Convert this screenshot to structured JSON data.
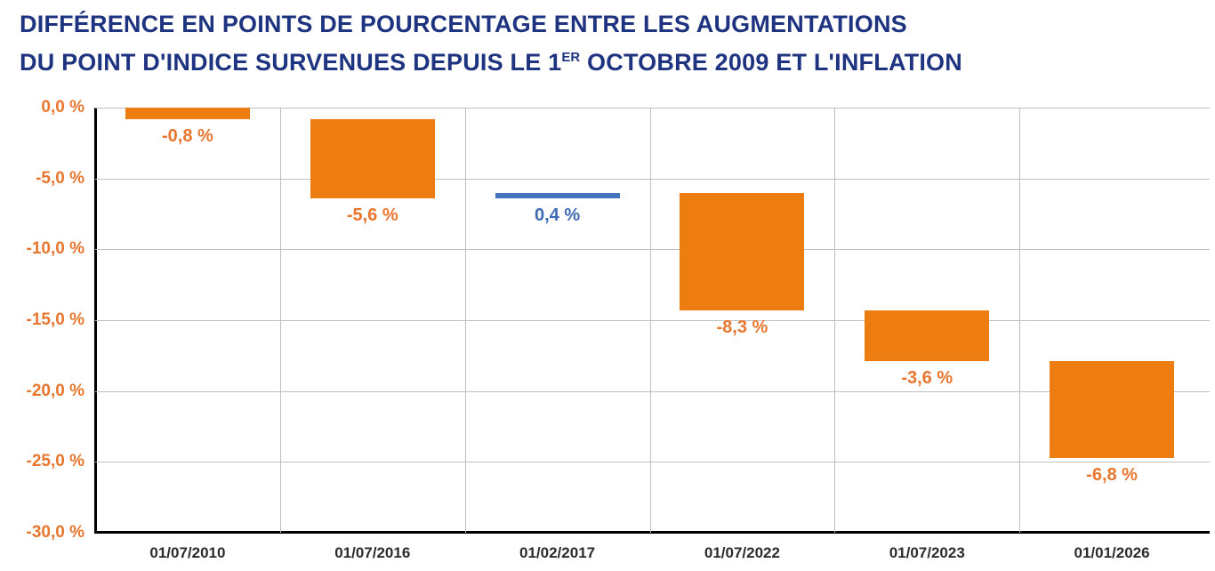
{
  "header": {
    "title_line1": "DIFFÉRENCE EN POINTS DE POURCENTAGE ENTRE LES AUGMENTATIONS",
    "title_line2": {
      "prefix": "DU POINT D'INDICE SURVENUES DEPUIS LE 1",
      "superscript": "ER",
      "suffix": " OCTOBRE 2009 ET L'INFLATION"
    }
  },
  "chart_data": {
    "type": "bar",
    "subtype": "waterfall",
    "categories": [
      "01/07/2010",
      "01/07/2016",
      "01/02/2017",
      "01/07/2022",
      "01/07/2023",
      "01/01/2026"
    ],
    "values": [
      -0.8,
      -5.6,
      0.4,
      -8.3,
      -3.6,
      -6.8
    ],
    "value_labels": [
      "-0,8 %",
      "-5,6 %",
      "0,4 %",
      "-8,3 %",
      "-3,6 %",
      "-6,8 %"
    ],
    "cumulative": [
      -0.8,
      -6.4,
      -6.0,
      -14.3,
      -17.9,
      -24.7
    ],
    "y_ticks": [
      "0,0 %",
      "-5,0 %",
      "-10,0 %",
      "-15,0 %",
      "-20,0 %",
      "-25,0 %",
      "-30,0 %"
    ],
    "y_tick_values": [
      0,
      -5,
      -10,
      -15,
      -20,
      -25,
      -30
    ],
    "ylim": [
      -30,
      0
    ],
    "grid": "on",
    "legend": "none",
    "colors": {
      "bar_negative": "#ED7D11",
      "bar_positive": "#4674BE",
      "label_negative": "#E8762F",
      "label_positive": "#3E6BB4",
      "tick_label": "#E8762F",
      "x_label": "#2B2B2B",
      "title": "#1F3480",
      "gridline": "#BFBFBF",
      "axis_line": "#000000"
    }
  }
}
